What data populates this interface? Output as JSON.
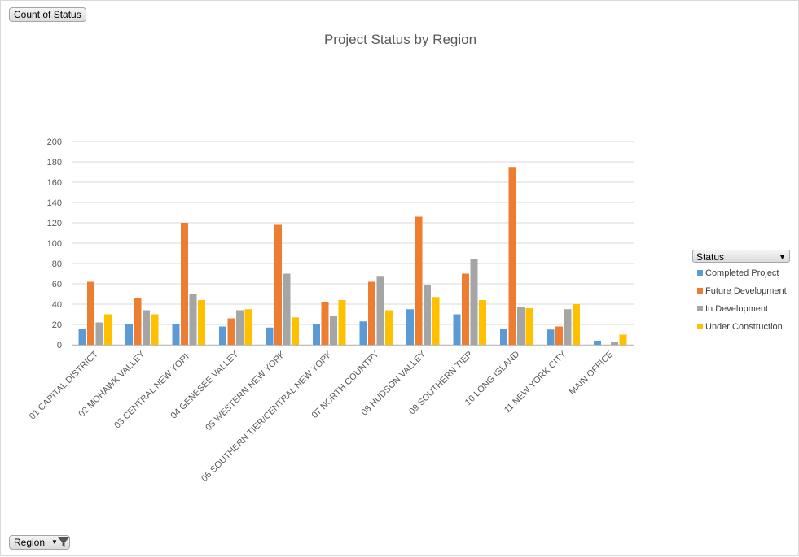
{
  "ui": {
    "values_field_button": "Count of Status",
    "axis_field_button": "Region",
    "legend_field_button": "Status"
  },
  "chart_data": {
    "type": "bar",
    "title": "Project Status by Region",
    "categories": [
      "01 CAPITAL DISTRICT",
      "02 MOHAWK VALLEY",
      "03 CENTRAL NEW YORK",
      "04 GENESEE VALLEY",
      "05 WESTERN NEW YORK",
      "06 SOUTHERN TIER/CENTRAL NEW YORK",
      "07 NORTH COUNTRY",
      "08 HUDSON VALLEY",
      "09 SOUTHERN TIER",
      "10 LONG ISLAND",
      "11 NEW YORK CITY",
      "MAIN OFFICE"
    ],
    "series": [
      {
        "name": "Completed Project",
        "color": "#5b9bd5",
        "values": [
          16,
          20,
          20,
          18,
          17,
          20,
          23,
          35,
          30,
          16,
          15,
          4
        ]
      },
      {
        "name": "Future Development",
        "color": "#ed7d31",
        "values": [
          62,
          46,
          120,
          26,
          118,
          42,
          62,
          126,
          70,
          175,
          18,
          0
        ]
      },
      {
        "name": "In Development",
        "color": "#a5a5a5",
        "values": [
          22,
          34,
          50,
          34,
          70,
          28,
          67,
          59,
          84,
          37,
          35,
          3
        ]
      },
      {
        "name": "Under Construction",
        "color": "#ffc000",
        "values": [
          30,
          30,
          44,
          35,
          27,
          44,
          34,
          47,
          44,
          36,
          40,
          10
        ]
      }
    ],
    "ylim": [
      0,
      200
    ],
    "yticks": [
      "0",
      "20",
      "40",
      "60",
      "80",
      "100",
      "120",
      "140",
      "160",
      "180",
      "200"
    ],
    "grid": true,
    "legend_position": "right"
  }
}
